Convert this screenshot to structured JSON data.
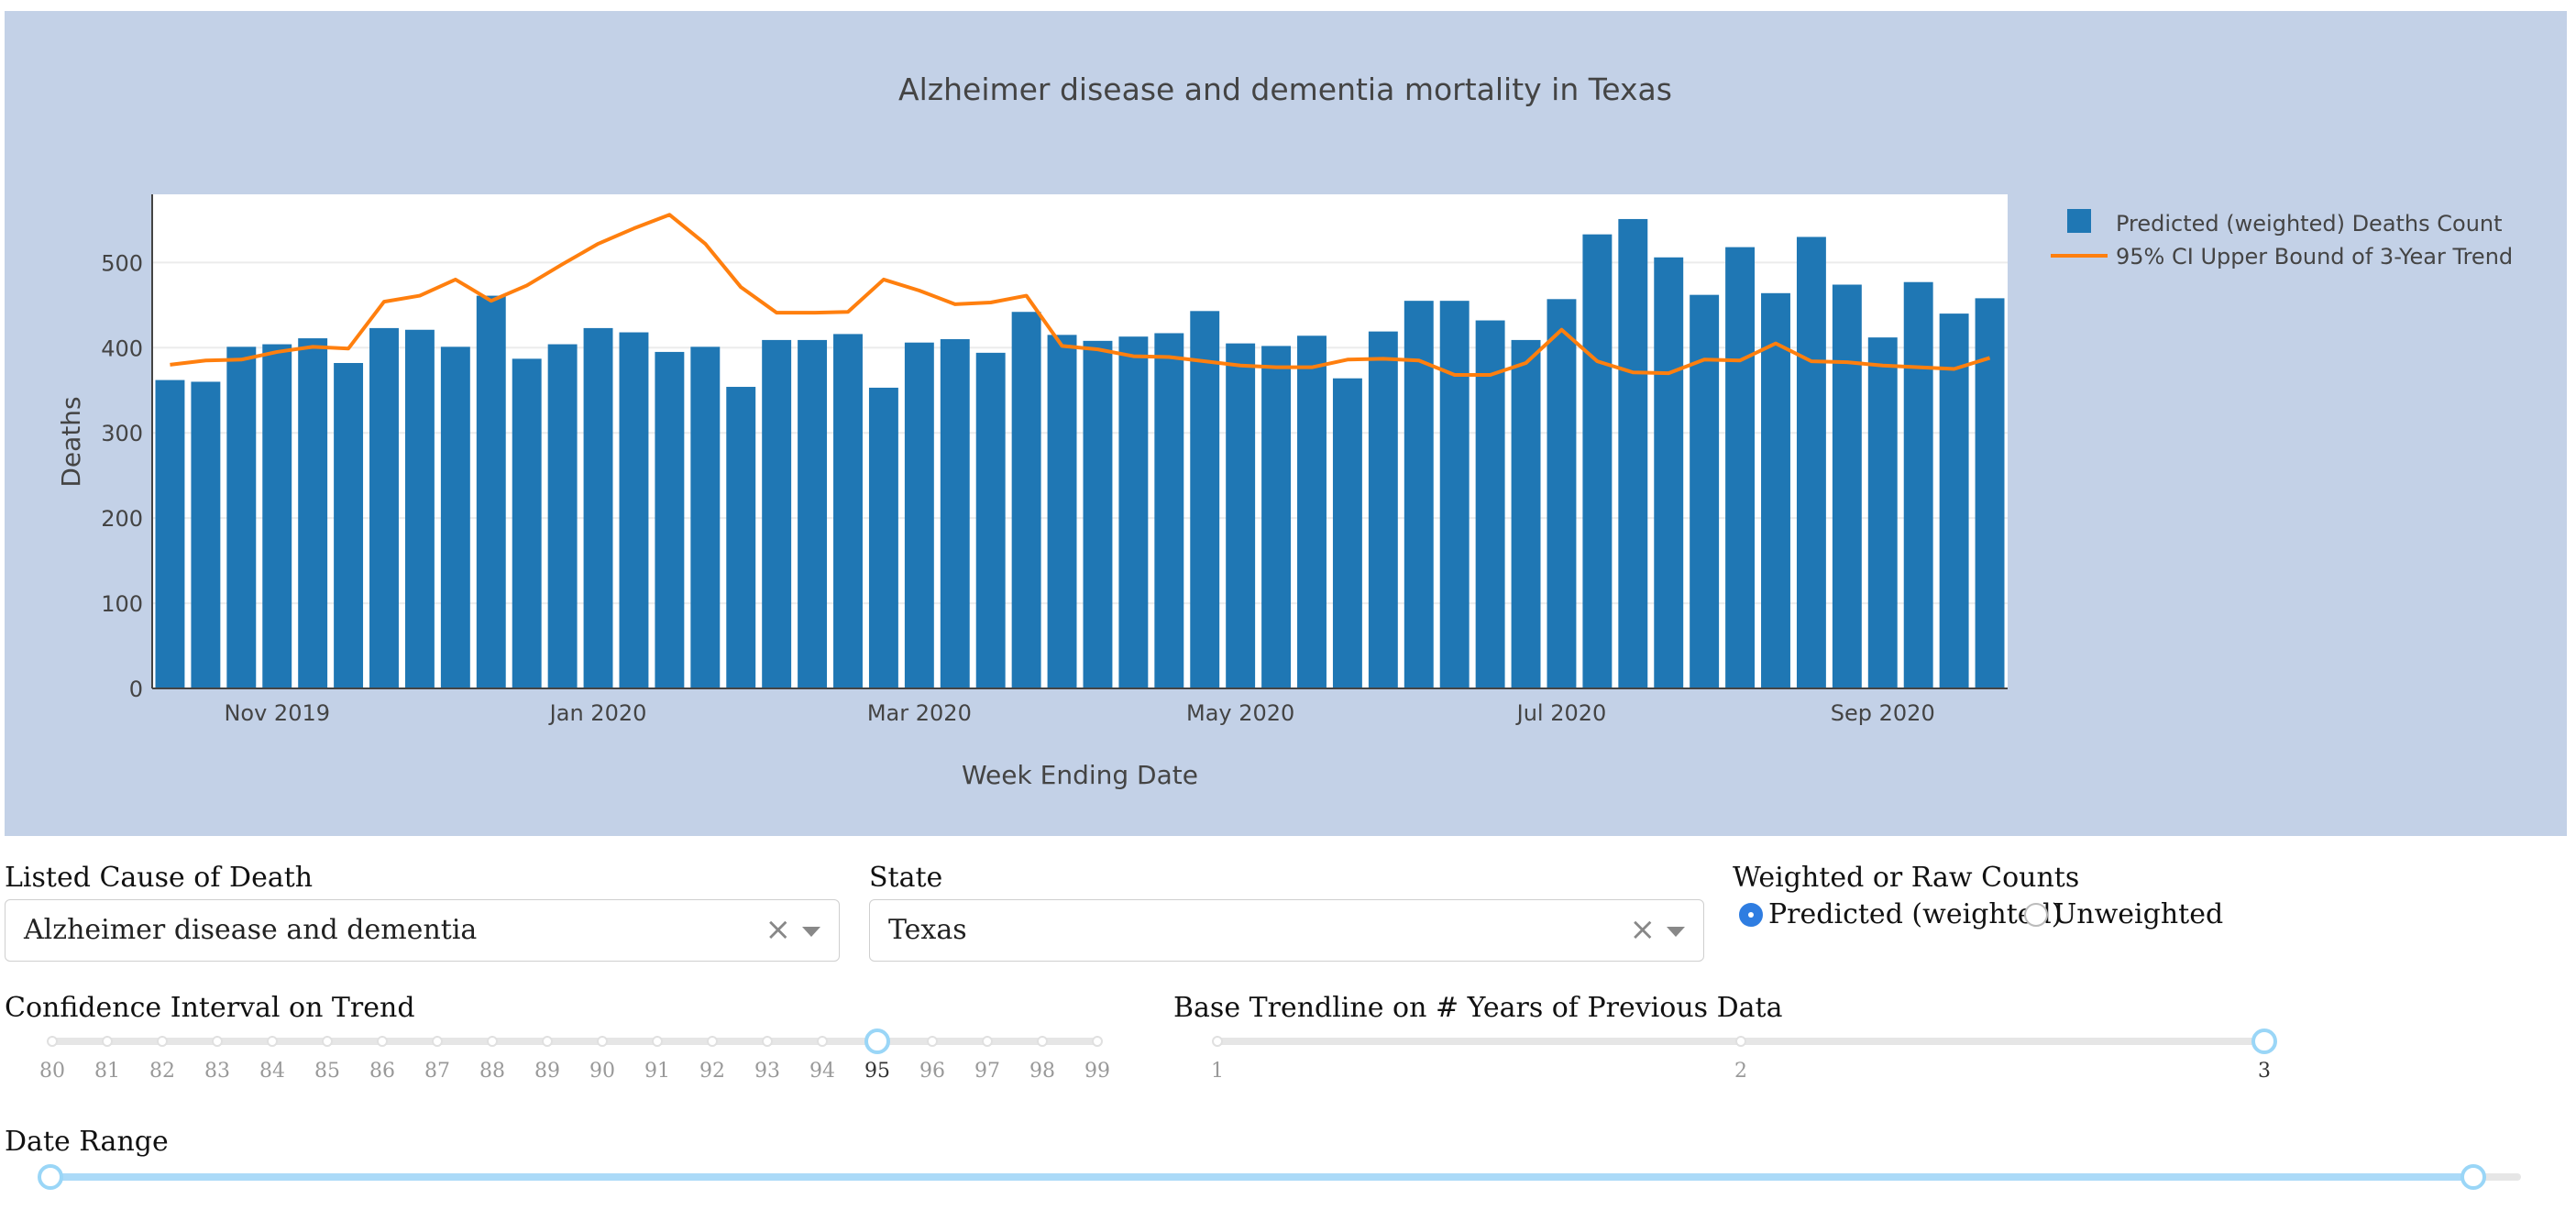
{
  "chart_data": {
    "type": "bar",
    "title": "Alzheimer disease and dementia mortality in Texas",
    "xlabel": "Week Ending Date",
    "ylabel": "Deaths",
    "ylim": [
      0,
      580
    ],
    "yticks": [
      0,
      100,
      200,
      300,
      400,
      500
    ],
    "xtick_labels": [
      "Nov 2019",
      "Jan 2020",
      "Mar 2020",
      "May 2020",
      "Jul 2020",
      "Sep 2020"
    ],
    "xtick_weeks": [
      3,
      12,
      21,
      30,
      39,
      48
    ],
    "legend_position": "top-right",
    "series": [
      {
        "name": "Predicted (weighted) Deaths Count",
        "kind": "bar",
        "color": "#1f77b4",
        "values": [
          362,
          360,
          401,
          404,
          411,
          382,
          423,
          421,
          401,
          461,
          387,
          404,
          423,
          418,
          395,
          401,
          354,
          409,
          409,
          416,
          353,
          406,
          410,
          394,
          442,
          415,
          408,
          413,
          417,
          443,
          405,
          402,
          414,
          364,
          419,
          455,
          455,
          432,
          409,
          457,
          533,
          551,
          506,
          462,
          518,
          464,
          530,
          474,
          412,
          477,
          440,
          458
        ]
      },
      {
        "name": "95% CI Upper Bound of 3-Year Trend",
        "kind": "line",
        "color": "#ff7f0e",
        "values": [
          380,
          385,
          386,
          395,
          401,
          399,
          454,
          461,
          480,
          455,
          473,
          498,
          522,
          540,
          556,
          522,
          471,
          441,
          441,
          442,
          480,
          467,
          451,
          453,
          461,
          402,
          398,
          390,
          389,
          384,
          379,
          377,
          377,
          386,
          387,
          385,
          368,
          368,
          382,
          421,
          384,
          371,
          370,
          386,
          385,
          405,
          384,
          383,
          379,
          377,
          375,
          388
        ]
      }
    ]
  },
  "controls": {
    "cause_label": "Listed Cause of Death",
    "cause_value": "Alzheimer disease and dementia",
    "state_label": "State",
    "state_value": "Texas",
    "clear_symbol": "×",
    "weight_label": "Weighted or Raw Counts",
    "weight_options": [
      "Predicted (weighted)",
      "Unweighted"
    ],
    "weight_selected": "Predicted (weighted)",
    "ci_label": "Confidence Interval on Trend",
    "ci_ticks": [
      "80",
      "81",
      "82",
      "83",
      "84",
      "85",
      "86",
      "87",
      "88",
      "89",
      "90",
      "91",
      "92",
      "93",
      "94",
      "95",
      "96",
      "97",
      "98",
      "99"
    ],
    "ci_value": "95",
    "years_label": "Base Trendline on # Years of Previous Data",
    "years_ticks": [
      "1",
      "2",
      "3"
    ],
    "years_value": "3",
    "date_label": "Date Range",
    "date_range_fraction": [
      0,
      1
    ]
  }
}
